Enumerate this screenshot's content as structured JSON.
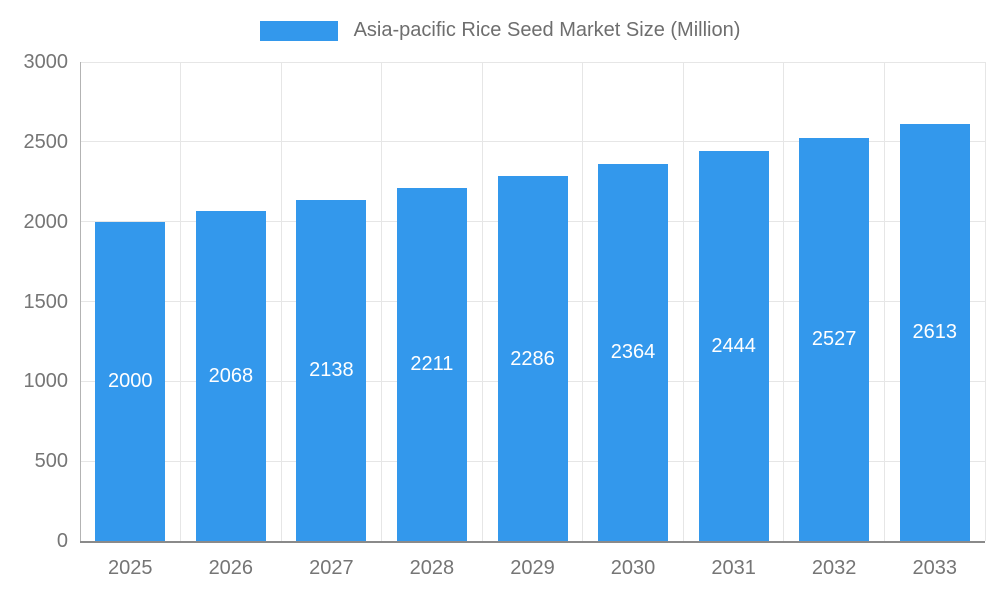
{
  "chart_data": {
    "type": "bar",
    "title": "Asia-pacific Rice Seed Market Size (Million)",
    "categories": [
      "2025",
      "2026",
      "2027",
      "2028",
      "2029",
      "2030",
      "2031",
      "2032",
      "2033"
    ],
    "values": [
      2000,
      2068,
      2138,
      2211,
      2286,
      2364,
      2444,
      2527,
      2613
    ],
    "series": [
      {
        "name": "Asia-pacific Rice Seed Market Size (Million)",
        "values": [
          2000,
          2068,
          2138,
          2211,
          2286,
          2364,
          2444,
          2527,
          2613
        ]
      }
    ],
    "xlabel": "",
    "ylabel": "",
    "ylim": [
      0,
      3000
    ],
    "yticks": [
      0,
      500,
      1000,
      1500,
      2000,
      2500,
      3000
    ],
    "grid": true,
    "legend_position": "top",
    "value_labels": "inside-center"
  },
  "colors": {
    "bar": "#3398EC",
    "grid": "#e6e6e6",
    "x_axis": "#8a8a8a",
    "y_axis": "#b3b3b3",
    "tick_text": "#757575",
    "legend_text": "#6e6e6e",
    "value_label": "#ffffff",
    "background": "#ffffff"
  }
}
